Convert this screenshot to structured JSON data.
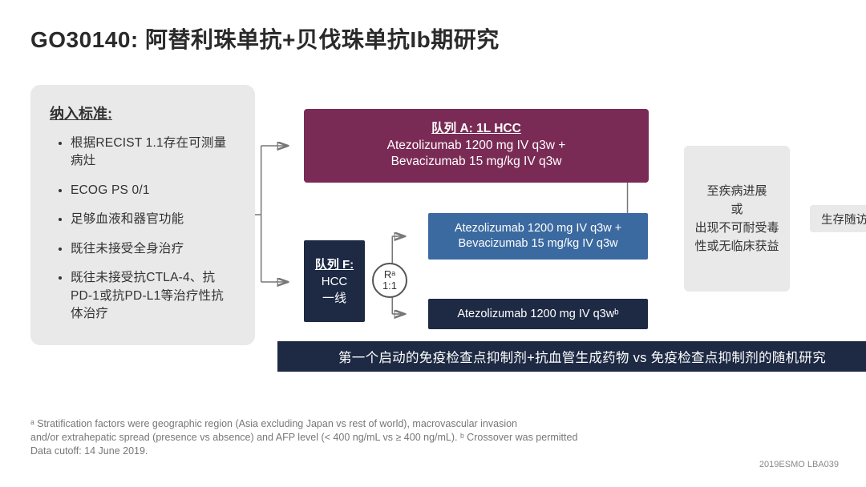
{
  "title": "GO30140: 阿替利珠单抗+贝伐珠单抗Ib期研究",
  "criteria": {
    "header": "纳入标准:",
    "items": [
      "根据RECIST 1.1存在可测量病灶",
      "ECOG PS 0/1",
      "足够血液和器官功能",
      "既往未接受全身治疗",
      "既往未接受抗CTLA-4、抗PD-1或抗PD-L1等治疗性抗体治疗"
    ]
  },
  "armA": {
    "title": "队列 A: 1L HCC",
    "line2": "Atezolizumab 1200 mg IV q3w +",
    "line3": "Bevacizumab 15 mg/kg IV q3w",
    "bg": "#7a2b55"
  },
  "armF": {
    "title": "队列 F:",
    "line2": "HCC",
    "line3": "一线",
    "bg": "#1e2a44"
  },
  "rand": {
    "top": "Rᵃ",
    "bot": "1:1"
  },
  "armF1": {
    "line1": "Atezolizumab 1200 mg IV q3w +",
    "line2": "Bevacizumab 15 mg/kg IV q3w",
    "bg": "#3b6aa0"
  },
  "armF2": {
    "line1": "Atezolizumab 1200 mg IV q3wᵇ",
    "bg": "#1e2a44"
  },
  "out1": "至疾病进展\n或\n出现不可耐受毒性或无临床获益",
  "out2": "生存随访",
  "bottombar": "第一个启动的免疫检查点抑制剂+抗血管生成药物 vs 免疫检查点抑制剂的随机研究",
  "footnotes": {
    "l1": "ᵃ Stratification factors were geographic region (Asia excluding Japan vs rest of world), macrovascular invasion",
    "l2": "and/or extrahepatic spread (presence vs absence) and AFP level (< 400 ng/mL vs ≥ 400 ng/mL). ᵇ Crossover was permitted",
    "l3": "Data cutoff: 14 June 2019."
  },
  "source": "2019ESMO   LBA039",
  "colors": {
    "grey": "#e9e9e9",
    "navy": "#1e2a44",
    "maroon": "#7a2b55",
    "steel": "#3b6aa0",
    "line": "#777777"
  }
}
